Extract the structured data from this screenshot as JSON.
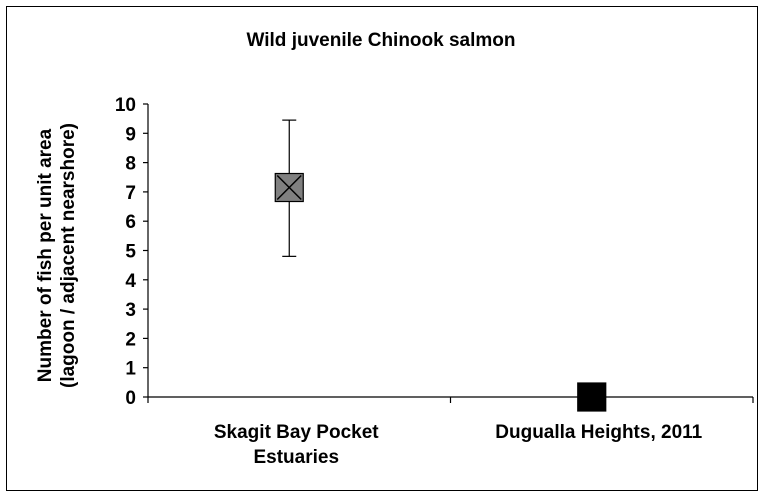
{
  "chart_data": {
    "type": "scatter",
    "title": "Wild juvenile Chinook salmon",
    "ylabel_lines": [
      "Number of fish per unit area",
      "(lagoon / adjacent nearshore)"
    ],
    "xlabel": "",
    "ylim": [
      0,
      10
    ],
    "yticks": [
      "0",
      "1",
      "2",
      "3",
      "4",
      "5",
      "6",
      "7",
      "8",
      "9",
      "10"
    ],
    "categories": [
      {
        "lines": [
          "Skagit Bay Pocket",
          "Estuaries"
        ]
      },
      {
        "lines": [
          "Dugualla Heights, 2011"
        ]
      }
    ],
    "points": [
      {
        "category_index": 0,
        "value": 7.15,
        "error_low": 4.8,
        "error_high": 9.45,
        "marker": "x-square",
        "fill": "#808080"
      },
      {
        "category_index": 1,
        "value": 0.0,
        "marker": "square",
        "fill": "#000000"
      }
    ],
    "grid": false,
    "legend": "none"
  }
}
